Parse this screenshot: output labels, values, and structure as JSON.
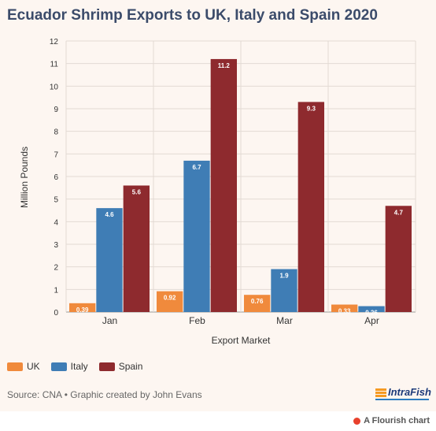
{
  "title": "Ecuador Shrimp Exports to UK, Italy and Spain 2020",
  "source": "Source: CNA • Graphic created by John Evans",
  "logo_text": "IntraFish",
  "flourish_text": "A Flourish chart",
  "chart_data": {
    "type": "bar",
    "title": "Ecuador Shrimp Exports to UK, Italy and Spain 2020",
    "xlabel": "Export Market",
    "ylabel": "Million Pounds",
    "ylim": [
      0,
      12
    ],
    "yticks": [
      0,
      1,
      2,
      3,
      4,
      5,
      6,
      7,
      8,
      9,
      10,
      11,
      12
    ],
    "categories": [
      "Jan",
      "Feb",
      "Mar",
      "Apr"
    ],
    "series": [
      {
        "name": "UK",
        "color": "#f08a3c",
        "values": [
          0.39,
          0.92,
          0.76,
          0.33
        ],
        "labels": [
          "0.39",
          "0.92",
          "0.76",
          "0.33"
        ]
      },
      {
        "name": "Italy",
        "color": "#3f7db5",
        "values": [
          4.6,
          6.7,
          1.9,
          0.26
        ],
        "labels": [
          "4.6",
          "6.7",
          "1.9",
          "0.26"
        ]
      },
      {
        "name": "Spain",
        "color": "#8e2a2e",
        "values": [
          5.6,
          11.2,
          9.3,
          4.7
        ],
        "labels": [
          "5.6",
          "11.2",
          "9.3",
          "4.7"
        ]
      }
    ],
    "legend": "bottom-left",
    "grid": true
  }
}
